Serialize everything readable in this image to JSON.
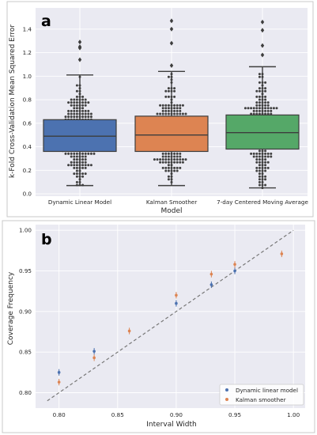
{
  "panel_labels": {
    "a": "a",
    "b": "b"
  },
  "colors": {
    "dynamic": "#4c72b0",
    "kalman": "#dd8452",
    "centered": "#55a868",
    "reference": "#777777",
    "swarm": "#404040"
  },
  "chart_data": [
    {
      "type": "box",
      "ylabel": "k-Fold Cross-Validation Mean Squared Error",
      "xlabel": "Model",
      "ylim": [
        -0.02,
        1.58
      ],
      "yticks": [
        "0.0",
        "0.2",
        "0.4",
        "0.6",
        "0.8",
        "1.0",
        "1.2",
        "1.4"
      ],
      "grid": true,
      "overlay": "swarm",
      "categories": [
        "Dynamic Linear Model",
        "Kalman Smoother",
        "7-day Centered Moving Average"
      ],
      "boxes": [
        {
          "q1": 0.36,
          "median": 0.49,
          "q3": 0.63,
          "whisker_low": 0.07,
          "whisker_high": 1.01,
          "outliers": [
            1.14,
            1.24,
            1.25,
            1.29
          ]
        },
        {
          "q1": 0.36,
          "median": 0.5,
          "q3": 0.66,
          "whisker_low": 0.07,
          "whisker_high": 1.04,
          "outliers": [
            1.09,
            1.28,
            1.4,
            1.47
          ]
        },
        {
          "q1": 0.38,
          "median": 0.52,
          "q3": 0.67,
          "whisker_low": 0.05,
          "whisker_high": 1.08,
          "outliers": [
            1.18,
            1.26,
            1.39,
            1.46
          ]
        }
      ]
    },
    {
      "type": "scatter",
      "xlabel": "Interval Width",
      "ylabel": "Coverage Frequency",
      "xlim": [
        0.78,
        1.01
      ],
      "ylim": [
        0.781,
        1.007
      ],
      "xticks": [
        "0.80",
        "0.85",
        "0.90",
        "0.95",
        "1.00"
      ],
      "yticks": [
        "0.80",
        "0.85",
        "0.90",
        "0.95",
        "1.00"
      ],
      "grid": true,
      "legend_position": "lower-right",
      "reference_line": {
        "x": [
          0.79,
          1.0
        ],
        "y": [
          0.79,
          1.0
        ],
        "style": "dashed"
      },
      "series": [
        {
          "name": "Dynamic linear model",
          "x": [
            0.8,
            0.83,
            0.9,
            0.93,
            0.95
          ],
          "y": [
            0.825,
            0.851,
            0.91,
            0.933,
            0.95
          ],
          "err": [
            0.004,
            0.004,
            0.004,
            0.004,
            0.004
          ]
        },
        {
          "name": "Kalman smoother",
          "x": [
            0.8,
            0.83,
            0.86,
            0.9,
            0.93,
            0.95,
            0.99
          ],
          "y": [
            0.813,
            0.843,
            0.876,
            0.92,
            0.946,
            0.958,
            0.971
          ],
          "err": [
            0.004,
            0.004,
            0.004,
            0.004,
            0.004,
            0.004,
            0.004
          ]
        }
      ]
    }
  ]
}
